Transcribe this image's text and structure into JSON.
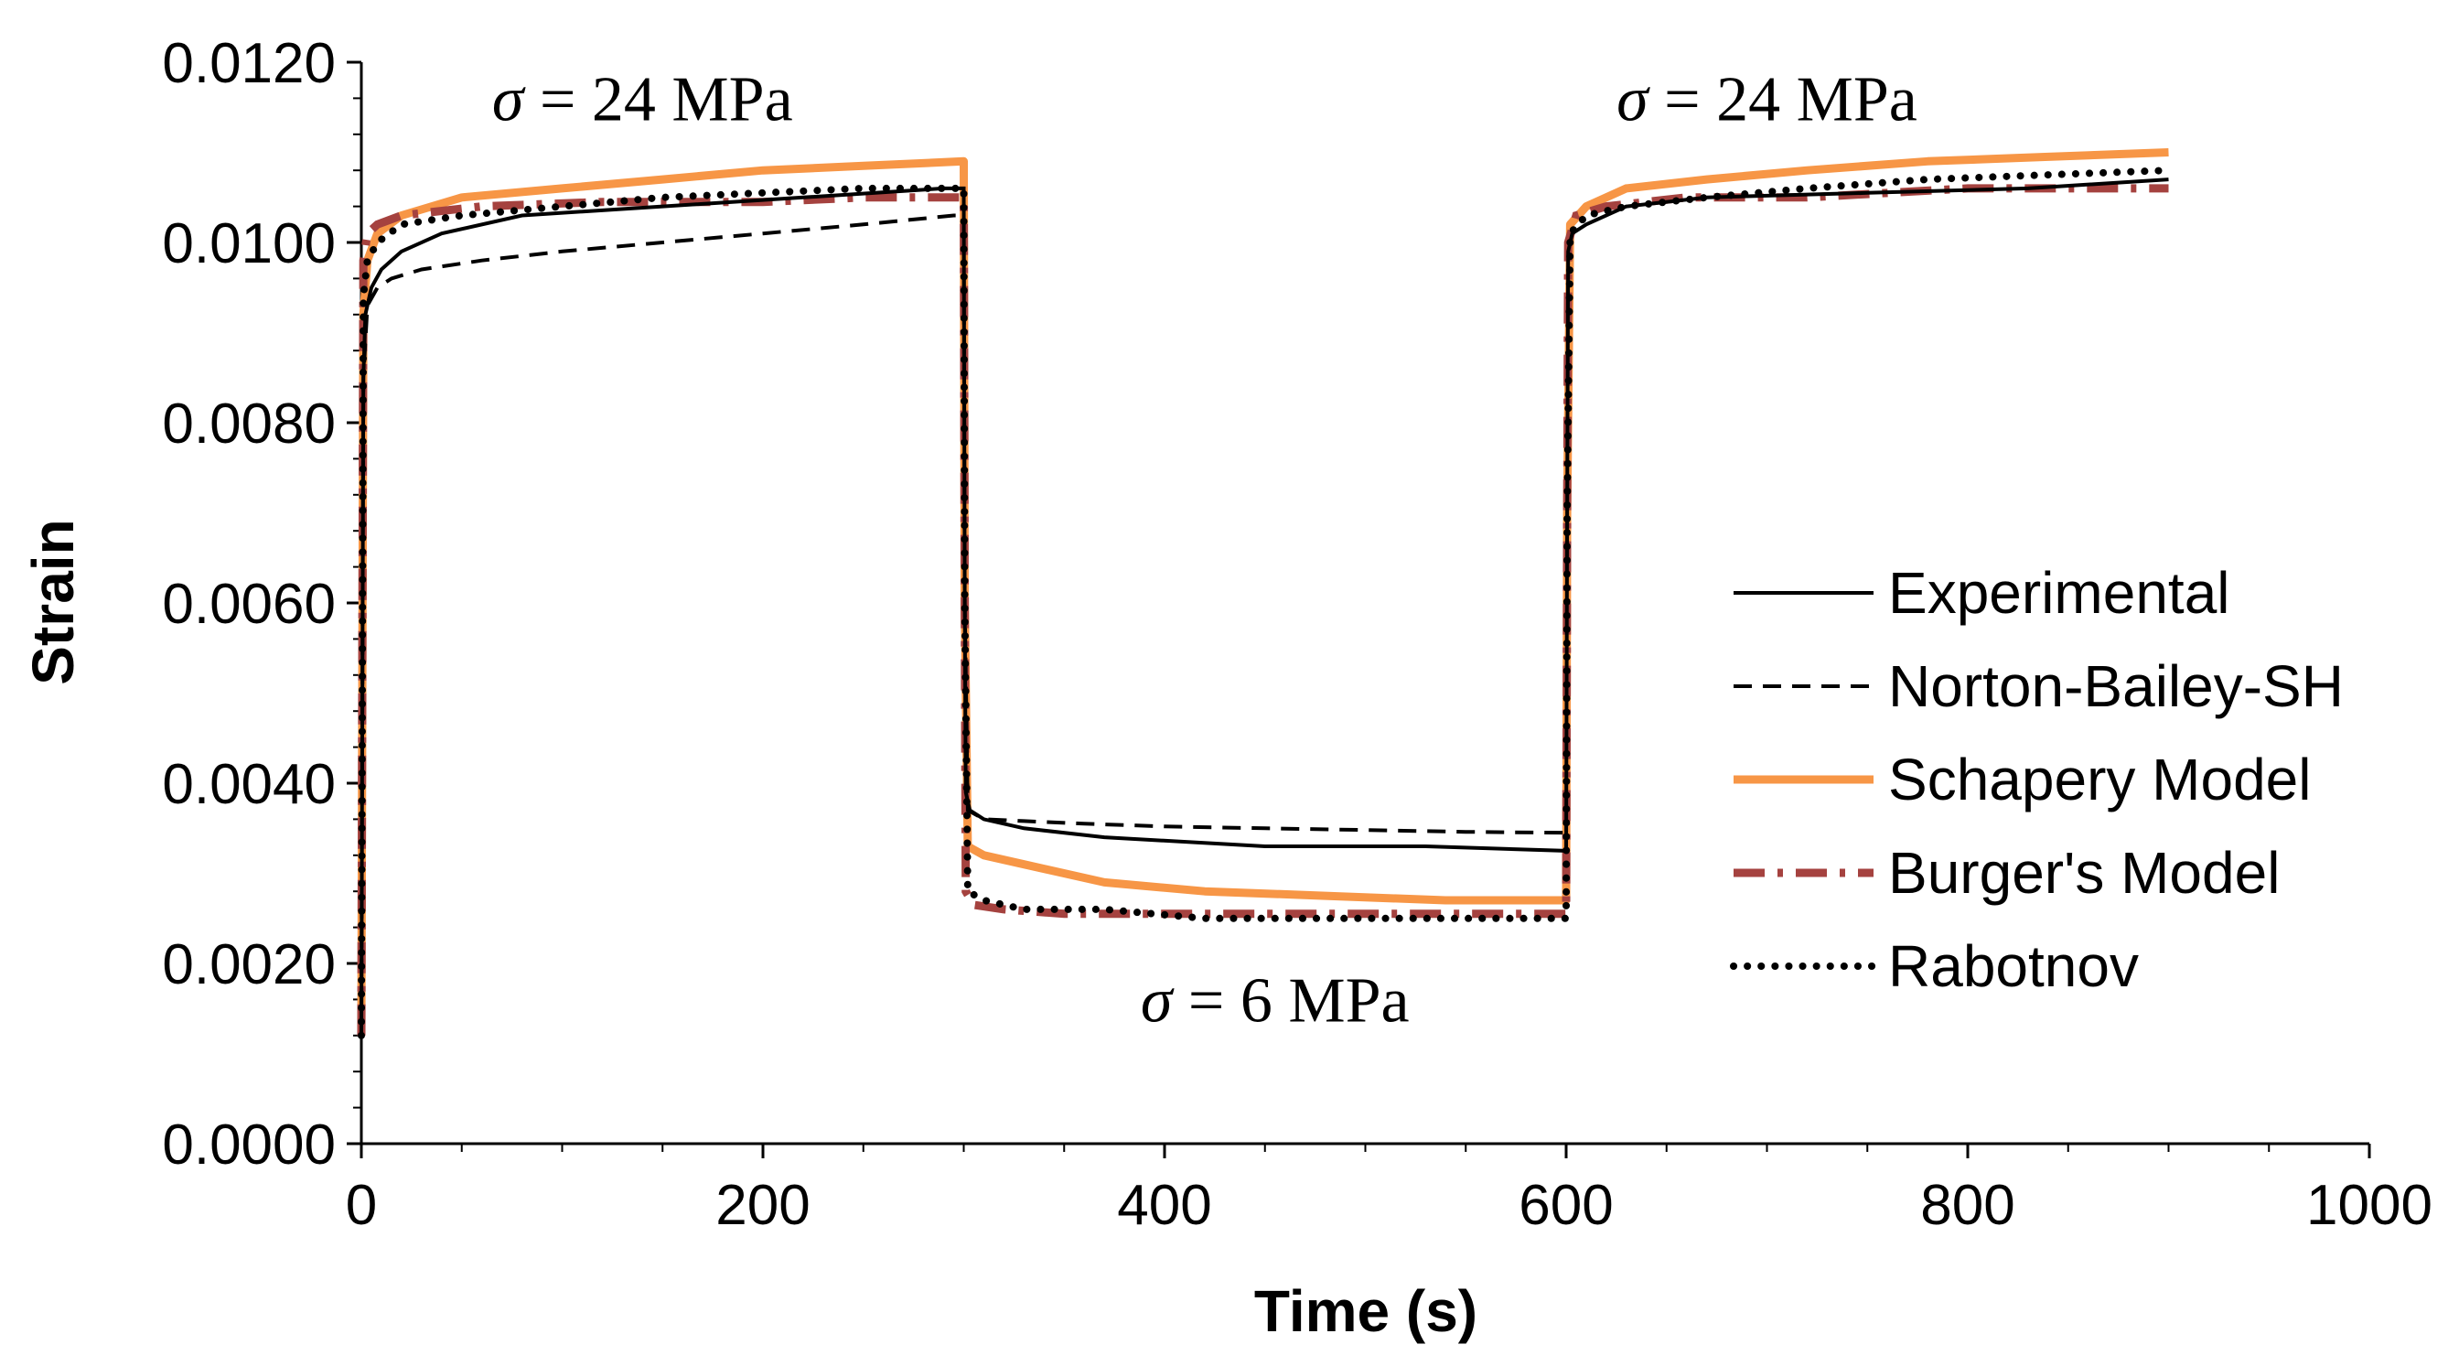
{
  "chart_data": {
    "type": "line",
    "title": "",
    "xlabel": "Time (s)",
    "ylabel": "Strain",
    "xlim": [
      0,
      1000
    ],
    "ylim": [
      0,
      0.012
    ],
    "x_ticks": [
      "0",
      "200",
      "400",
      "600",
      "800",
      "1000"
    ],
    "y_ticks": [
      "0.0000",
      "0.0020",
      "0.0040",
      "0.0060",
      "0.0080",
      "0.0100",
      "0.0120"
    ],
    "grid": false,
    "legend_position": "right",
    "annotations": [
      {
        "symbol": "σ",
        "text": " = 24 MPa",
        "x": 140,
        "y": 0.0116
      },
      {
        "symbol": "σ",
        "text": " = 24 MPa",
        "x": 700,
        "y": 0.0116
      },
      {
        "symbol": "σ",
        "text": " = 6 MPa",
        "x": 455,
        "y": 0.0016
      }
    ],
    "series": [
      {
        "name": "Experimental",
        "color": "#000000",
        "style": "solid",
        "x": [
          0,
          1,
          2,
          5,
          10,
          20,
          40,
          80,
          150,
          220,
          290,
          300,
          300.5,
          301,
          303,
          310,
          330,
          370,
          450,
          530,
          600,
          600.5,
          601,
          603,
          610,
          630,
          670,
          750,
          830,
          900
        ],
        "y": [
          0.0012,
          0.0085,
          0.0092,
          0.0095,
          0.0097,
          0.0099,
          0.0101,
          0.0103,
          0.0104,
          0.0105,
          0.0106,
          0.0106,
          0.006,
          0.0039,
          0.0037,
          0.0036,
          0.0035,
          0.0034,
          0.0033,
          0.0033,
          0.00325,
          0.007,
          0.0099,
          0.0101,
          0.0102,
          0.0104,
          0.0105,
          0.01055,
          0.0106,
          0.0107
        ]
      },
      {
        "name": "Norton-Bailey-SH",
        "color": "#000000",
        "style": "dashed",
        "x": [
          0,
          1,
          3,
          8,
          15,
          30,
          60,
          100,
          150,
          200,
          250,
          295,
          300,
          300.5,
          302,
          310,
          330,
          360,
          400,
          450,
          500,
          550,
          600
        ],
        "y": [
          0.0012,
          0.0085,
          0.0093,
          0.0095,
          0.0096,
          0.0097,
          0.0098,
          0.0099,
          0.01,
          0.0101,
          0.0102,
          0.0103,
          0.0103,
          0.006,
          0.0037,
          0.0036,
          0.00358,
          0.00355,
          0.00352,
          0.0035,
          0.00348,
          0.00346,
          0.00345
        ]
      },
      {
        "name": "Schapery Model",
        "color": "#F79646",
        "style": "solid",
        "x": [
          0,
          1,
          3,
          8,
          20,
          50,
          100,
          150,
          200,
          250,
          300,
          300.5,
          302,
          310,
          330,
          370,
          420,
          480,
          540,
          600,
          600.5,
          602,
          610,
          630,
          670,
          720,
          780,
          840,
          900
        ],
        "y": [
          0.0012,
          0.0092,
          0.0098,
          0.0101,
          0.0103,
          0.0105,
          0.0106,
          0.0107,
          0.0108,
          0.01085,
          0.0109,
          0.006,
          0.0033,
          0.0032,
          0.0031,
          0.0029,
          0.0028,
          0.00275,
          0.0027,
          0.0027,
          0.007,
          0.0102,
          0.0104,
          0.0106,
          0.0107,
          0.0108,
          0.0109,
          0.01095,
          0.011
        ]
      },
      {
        "name": "Burger's Model",
        "color": "#A5423F",
        "style": "dashdot",
        "x": [
          0,
          1,
          3,
          8,
          20,
          60,
          120,
          200,
          250,
          300,
          300.5,
          301,
          305,
          320,
          350,
          400,
          450,
          500,
          560,
          600,
          600.5,
          601,
          605,
          620,
          660,
          720,
          800,
          860,
          900
        ],
        "y": [
          0.0012,
          0.0098,
          0.0101,
          0.0102,
          0.0103,
          0.0104,
          0.01045,
          0.01045,
          0.0105,
          0.0105,
          0.006,
          0.0028,
          0.00265,
          0.0026,
          0.00255,
          0.00255,
          0.00255,
          0.00255,
          0.00255,
          0.00255,
          0.007,
          0.01,
          0.0103,
          0.0104,
          0.0105,
          0.0105,
          0.0106,
          0.0106,
          0.0106
        ]
      },
      {
        "name": "Rabotnov",
        "color": "#000000",
        "style": "dotted",
        "x": [
          0,
          1,
          3,
          8,
          20,
          50,
          100,
          150,
          200,
          250,
          300,
          300.5,
          302,
          310,
          330,
          370,
          420,
          480,
          540,
          600,
          600.5,
          602,
          610,
          630,
          670,
          720,
          780,
          840,
          900
        ],
        "y": [
          0.0012,
          0.0094,
          0.0098,
          0.01,
          0.0102,
          0.0103,
          0.0104,
          0.0105,
          0.01055,
          0.0106,
          0.0106,
          0.006,
          0.0028,
          0.0027,
          0.0026,
          0.0026,
          0.0025,
          0.0025,
          0.0025,
          0.0025,
          0.007,
          0.0101,
          0.0103,
          0.0104,
          0.0105,
          0.0106,
          0.0107,
          0.01075,
          0.0108
        ]
      }
    ]
  }
}
